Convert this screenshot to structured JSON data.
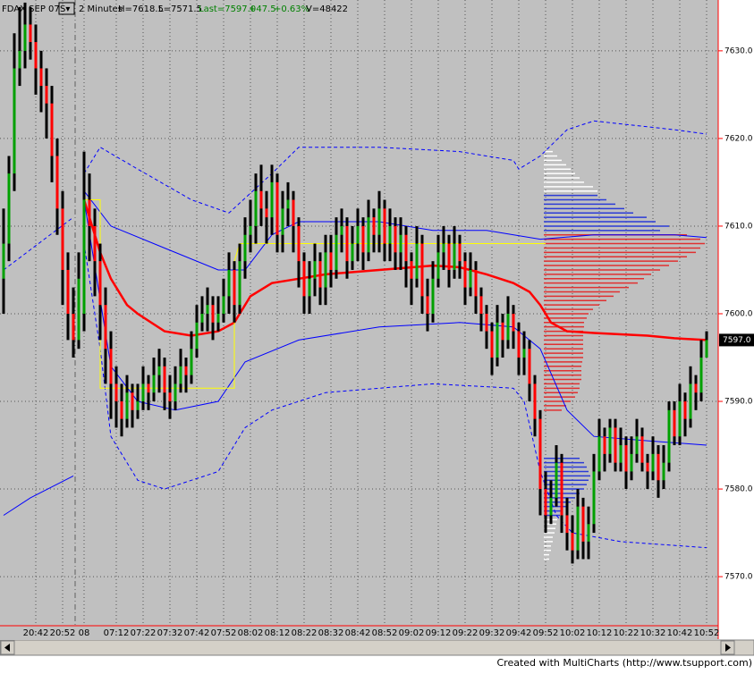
{
  "header": {
    "symbol": "FDAX SEP 07",
    "mode": "S▾",
    "interval": "2 Minutes",
    "high": "H=7618.5",
    "low": "L=7571.5",
    "last": "Last=7597.0",
    "change": "+47.5",
    "change_pct": "+0.63%",
    "volume": "V=48422"
  },
  "footer": "Created with MultiCharts (http://www.tsupport.com)",
  "chart_data": {
    "type": "ohlc",
    "categories": [
      null,
      null,
      null,
      null,
      null,
      null,
      "20:42",
      null,
      null,
      null,
      null,
      "20:52",
      null,
      null,
      null,
      "08",
      null,
      null,
      null,
      null,
      null,
      "07:12",
      null,
      null,
      null,
      null,
      "07:22",
      null,
      null,
      null,
      null,
      "07:32",
      null,
      null,
      null,
      null,
      "07:42",
      null,
      null,
      null,
      null,
      "07:52",
      null,
      null,
      null,
      null,
      "08:02",
      null,
      null,
      null,
      null,
      "08:12",
      null,
      null,
      null,
      null,
      "08:22",
      null,
      null,
      null,
      null,
      "08:32",
      null,
      null,
      null,
      null,
      "08:42",
      null,
      null,
      null,
      null,
      "08:52",
      null,
      null,
      null,
      null,
      "09:02",
      null,
      null,
      null,
      null,
      "09:12",
      null,
      null,
      null,
      null,
      "09:22",
      null,
      null,
      null,
      null,
      "09:32",
      null,
      null,
      null,
      null,
      "09:42",
      null,
      null,
      null,
      null,
      "09:52",
      null,
      null,
      null,
      null,
      "10:02",
      null,
      null,
      null,
      null,
      "10:12",
      null,
      null,
      null,
      null,
      "10:22",
      null,
      null,
      null,
      null,
      "10:32",
      null,
      null,
      null,
      null,
      "10:42",
      null,
      null,
      null,
      null,
      "10:52"
    ],
    "open": [
      7604,
      7608,
      7616,
      7628,
      7630,
      7633,
      7631,
      7628,
      7626,
      7624,
      7618,
      7612,
      7605,
      7600,
      7597,
      7600,
      7613,
      7610,
      7606,
      7601,
      7596,
      7592,
      7590,
      7588,
      7591,
      7589,
      7590,
      7592,
      7591,
      7593,
      7594,
      7591,
      7590,
      7592,
      7594,
      7593,
      7596,
      7599,
      7600,
      7601,
      7599,
      7600,
      7602,
      7605,
      7601,
      7606,
      7609,
      7610,
      7614,
      7612,
      7611,
      7615,
      7609,
      7612,
      7613,
      7610,
      7606,
      7602,
      7604,
      7606,
      7603,
      7607,
      7605,
      7609,
      7610,
      7606,
      7608,
      7610,
      7607,
      7611,
      7609,
      7612,
      7608,
      7610,
      7607,
      7609,
      7606,
      7604,
      7608,
      7602,
      7600,
      7604,
      7607,
      7608,
      7605,
      7608,
      7606,
      7603,
      7605,
      7602,
      7600,
      7598,
      7595,
      7599,
      7597,
      7600,
      7598,
      7595,
      7596,
      7592,
      7588,
      7580,
      7577,
      7579,
      7583,
      7577,
      7575,
      7573,
      7578,
      7574,
      7576,
      7582,
      7586,
      7584,
      7587,
      7583,
      7585,
      7582,
      7584,
      7586,
      7583,
      7582,
      7584,
      7581,
      7583,
      7589,
      7586,
      7590,
      7588,
      7592,
      7591,
      7595
    ],
    "high": [
      7612,
      7618,
      7632,
      7635,
      7635.5,
      7635,
      7633,
      7630,
      7628,
      7626,
      7620,
      7614,
      7607,
      7603,
      7607,
      7618.5,
      7616,
      7612,
      7608,
      7603,
      7598,
      7594,
      7592,
      7593,
      7592,
      7592,
      7594,
      7593,
      7595,
      7596,
      7595,
      7593,
      7594,
      7596,
      7595,
      7598,
      7601,
      7602,
      7603,
      7602,
      7602,
      7604,
      7607,
      7606,
      7608,
      7611,
      7613,
      7616,
      7617,
      7614,
      7617,
      7616,
      7614,
      7615,
      7614,
      7611,
      7607,
      7606,
      7608,
      7607,
      7609,
      7609,
      7611,
      7612,
      7611,
      7610,
      7612,
      7611,
      7613,
      7612,
      7614,
      7613,
      7612,
      7611,
      7611,
      7610,
      7607,
      7610,
      7609,
      7604,
      7606,
      7609,
      7610,
      7609,
      7610,
      7609,
      7607,
      7607,
      7606,
      7603,
      7601,
      7599,
      7601,
      7600,
      7602,
      7601,
      7599,
      7598,
      7597,
      7593,
      7589,
      7582,
      7581,
      7585,
      7584,
      7579,
      7577,
      7580,
      7579,
      7578,
      7584,
      7588,
      7587,
      7588,
      7588,
      7587,
      7586,
      7586,
      7588,
      7587,
      7584,
      7586,
      7585,
      7585,
      7590,
      7590,
      7592,
      7591,
      7594,
      7593,
      7597,
      7598
    ],
    "low": [
      7600,
      7606,
      7614,
      7626,
      7628,
      7629,
      7625,
      7623,
      7620,
      7615,
      7609,
      7601,
      7597,
      7595,
      7596,
      7598,
      7606,
      7602,
      7597,
      7592,
      7588,
      7587,
      7586,
      7587,
      7587,
      7588,
      7589,
      7589,
      7590,
      7591,
      7589,
      7588,
      7589,
      7591,
      7591,
      7592,
      7595,
      7598,
      7598,
      7597,
      7598,
      7599,
      7600,
      7599,
      7600,
      7604,
      7607,
      7608,
      7610,
      7608,
      7609,
      7607,
      7607,
      7610,
      7607,
      7603,
      7600,
      7600,
      7602,
      7601,
      7601,
      7603,
      7604,
      7607,
      7604,
      7605,
      7606,
      7605,
      7606,
      7607,
      7607,
      7606,
      7606,
      7605,
      7605,
      7603,
      7601,
      7603,
      7600,
      7598,
      7599,
      7603,
      7605,
      7603,
      7604,
      7604,
      7601,
      7602,
      7600,
      7598,
      7596,
      7593,
      7594,
      7595,
      7596,
      7596,
      7593,
      7593,
      7590,
      7586,
      7577,
      7575,
      7576,
      7578,
      7575,
      7573,
      7571.5,
      7572,
      7572,
      7572,
      7575,
      7581,
      7582,
      7583,
      7582,
      7582,
      7580,
      7581,
      7583,
      7582,
      7580,
      7581,
      7579,
      7580,
      7582,
      7585,
      7585,
      7586,
      7587,
      7589,
      7590,
      7595
    ],
    "close": [
      7608,
      7616,
      7628,
      7630,
      7633,
      7631,
      7628,
      7626,
      7624,
      7618,
      7612,
      7605,
      7600,
      7597,
      7604,
      7613,
      7610,
      7606,
      7601,
      7596,
      7592,
      7590,
      7588,
      7591,
      7589,
      7590,
      7592,
      7591,
      7593,
      7594,
      7591,
      7590,
      7592,
      7594,
      7593,
      7596,
      7599,
      7600,
      7601,
      7599,
      7600,
      7602,
      7605,
      7601,
      7606,
      7609,
      7610,
      7614,
      7612,
      7611,
      7615,
      7609,
      7612,
      7613,
      7610,
      7606,
      7602,
      7604,
      7606,
      7603,
      7607,
      7605,
      7609,
      7610,
      7606,
      7608,
      7610,
      7607,
      7611,
      7609,
      7612,
      7608,
      7610,
      7607,
      7609,
      7606,
      7604,
      7608,
      7602,
      7600,
      7604,
      7607,
      7608,
      7605,
      7608,
      7606,
      7603,
      7605,
      7602,
      7600,
      7598,
      7595,
      7599,
      7597,
      7600,
      7598,
      7595,
      7596,
      7592,
      7588,
      7580,
      7577,
      7579,
      7583,
      7577,
      7575,
      7573,
      7578,
      7574,
      7576,
      7582,
      7586,
      7584,
      7587,
      7583,
      7585,
      7582,
      7584,
      7586,
      7583,
      7582,
      7584,
      7581,
      7583,
      7589,
      7586,
      7590,
      7588,
      7592,
      7591,
      7595,
      7597
    ],
    "up_color": "#00a000",
    "down_color": "#ff0000",
    "bar_color": "#000000",
    "ylim": [
      7564.4,
      7635.8
    ],
    "yticks": [
      {
        "value": 7570,
        "label": "7570.0"
      },
      {
        "value": 7580,
        "label": "7580.0"
      },
      {
        "value": 7590,
        "label": "7590.0"
      },
      {
        "value": 7600,
        "label": "7600.0"
      },
      {
        "value": 7610,
        "label": "7610.0"
      },
      {
        "value": 7620,
        "label": "7620.0"
      },
      {
        "value": 7630,
        "label": "7630.0"
      }
    ],
    "grid": true,
    "price_marker": {
      "value": 7597,
      "label": "7597.0"
    },
    "lines": [
      {
        "color": "#ff0000",
        "style": "thick",
        "x": [
          15,
          18,
          20,
          23,
          25,
          30,
          35,
          40,
          43,
          46,
          50,
          55,
          60,
          70,
          80,
          85,
          90,
          95,
          98,
          100,
          102,
          105,
          110,
          120,
          125,
          131
        ],
        "values": [
          7613,
          7607,
          7604,
          7601,
          7600,
          7598,
          7597.5,
          7598,
          7599,
          7602,
          7603.5,
          7604,
          7604.5,
          7605,
          7605.5,
          7605.3,
          7604.5,
          7603.5,
          7602.5,
          7601,
          7599,
          7598,
          7597.8,
          7597.5,
          7597.2,
          7597
        ]
      },
      {
        "color": "#0000ff",
        "style": "thin",
        "x": [
          0,
          5,
          13,
          14,
          15,
          20,
          30,
          40,
          45,
          50,
          55,
          70,
          80,
          90,
          100,
          110,
          125,
          131
        ],
        "values": [
          7577,
          7579,
          7581.5,
          null,
          7614,
          7610,
          7607.5,
          7605,
          7605,
          7609,
          7610.5,
          7610.5,
          7609.5,
          7609.5,
          7608.5,
          7609,
          7609,
          7608.7
        ]
      },
      {
        "color": "#0000ff",
        "style": "thin",
        "x": [
          15,
          20,
          25,
          32,
          40,
          45,
          55,
          70,
          85,
          95,
          100,
          105,
          110,
          120,
          131
        ],
        "values": [
          7613,
          7594,
          7590,
          7589,
          7590,
          7594.5,
          7597,
          7598.5,
          7599,
          7598.5,
          7596,
          7589,
          7586,
          7585.5,
          7585
        ]
      },
      {
        "color": "#0000ff",
        "style": "dashed",
        "x": [
          0,
          13,
          14,
          15,
          18,
          25,
          35,
          42,
          50,
          55,
          70,
          85,
          95,
          96,
          100,
          105,
          110,
          125,
          131
        ],
        "values": [
          7605,
          7611,
          null,
          7616,
          7619,
          7616.5,
          7613,
          7611.5,
          7616,
          7619,
          7619,
          7618.5,
          7617.5,
          7616.5,
          7618,
          7621,
          7622,
          7621,
          7620.5
        ]
      },
      {
        "color": "#0000ff",
        "style": "dashed",
        "x": [
          15,
          18,
          20,
          25,
          30,
          40,
          45,
          50,
          60,
          80,
          95,
          97,
          100,
          103,
          106,
          115,
          131
        ],
        "values": [
          7608,
          7596,
          7586,
          7581,
          7580,
          7582,
          7587,
          7589,
          7591,
          7592,
          7591.5,
          7590,
          7582,
          7577,
          7575,
          7574,
          7573.3
        ]
      },
      {
        "color": "#ffff00",
        "style": "thin",
        "x": [
          15,
          18,
          18,
          43,
          43,
          44,
          101
        ],
        "values": [
          7613,
          7613,
          7591.5,
          7591.5,
          7606,
          7608,
          7608
        ]
      }
    ],
    "volume_profile": [
      {
        "color": "#ffffff",
        "prices": [
          7618.5,
          7618,
          7617.5,
          7617,
          7616.5,
          7616,
          7615.5,
          7615,
          7614.5,
          7614
        ],
        "volumes": [
          10,
          15,
          20,
          25,
          30,
          35,
          40,
          45,
          55,
          60
        ]
      },
      {
        "color": "#2b3bd6",
        "prices": [
          7613.5,
          7613,
          7612.5,
          7612,
          7611.5,
          7611,
          7610.5,
          7610,
          7609.5
        ],
        "volumes": [
          60,
          70,
          80,
          90,
          100,
          115,
          125,
          140,
          130
        ]
      },
      {
        "color": "#e03030",
        "prices": [
          7609,
          7608.5,
          7608,
          7607.5,
          7607,
          7606.5,
          7606,
          7605.5,
          7605,
          7604.5,
          7604,
          7603.5,
          7603,
          7602.5,
          7602,
          7601.5,
          7601,
          7600.5,
          7600,
          7599.5,
          7599,
          7598.5,
          7598,
          7597.5,
          7597,
          7596.5,
          7596,
          7595.5,
          7595,
          7594.5,
          7594,
          7593.5,
          7593,
          7592.5,
          7592,
          7591.5,
          7591,
          7590.5,
          7590,
          7589.5,
          7589
        ],
        "volumes": [
          160,
          175,
          180,
          175,
          170,
          160,
          150,
          140,
          130,
          120,
          112,
          105,
          95,
          85,
          78,
          70,
          62,
          55,
          50,
          48,
          45,
          45,
          44,
          44,
          44,
          44,
          44,
          44,
          44,
          43,
          42,
          42,
          42,
          42,
          40,
          40,
          38,
          35,
          30,
          25,
          20
        ]
      },
      {
        "color": "#2b3bd6",
        "prices": [
          7583.5,
          7583,
          7582.5,
          7582,
          7581.5,
          7581,
          7580.5,
          7580,
          7579.5,
          7579,
          7578.5,
          7578,
          7577.5,
          7577
        ],
        "volumes": [
          40,
          45,
          48,
          50,
          52,
          50,
          48,
          45,
          40,
          35,
          30,
          25,
          20,
          18
        ]
      },
      {
        "color": "#ffffff",
        "prices": [
          7576.5,
          7576,
          7575.5,
          7575,
          7574.5,
          7574,
          7573.5,
          7573,
          7572.5,
          7572
        ],
        "volumes": [
          15,
          14,
          13,
          12,
          10,
          10,
          8,
          8,
          6,
          6
        ]
      }
    ]
  }
}
